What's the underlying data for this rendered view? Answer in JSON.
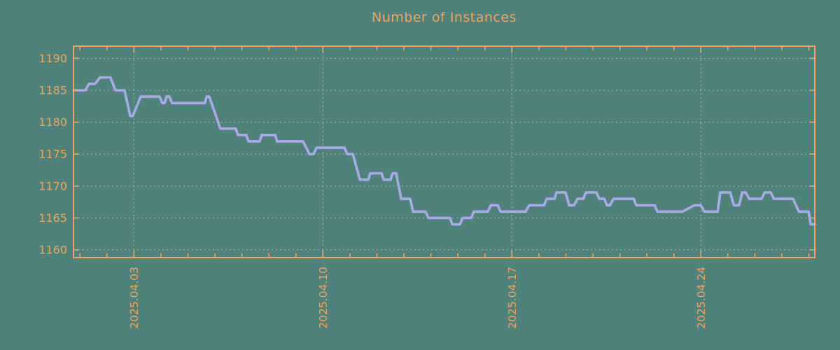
{
  "colors": {
    "background": "#4f827a",
    "axis_and_text": "#f0a35c",
    "series_line": "#a9a9e9",
    "gridline": "#b0b2b0"
  },
  "chart_data": {
    "type": "line",
    "title": "Number of Instances",
    "xlabel": "",
    "ylabel": "",
    "grid": true,
    "legend": false,
    "x_axis": {
      "unit": "date",
      "range_days": [
        0.76,
        28.22
      ],
      "day_zero": "2025.03.31",
      "major_ticks": [
        {
          "day": 3,
          "label": "2025.04.03"
        },
        {
          "day": 10,
          "label": "2025.04.10"
        },
        {
          "day": 17,
          "label": "2025.04.17"
        },
        {
          "day": 24,
          "label": "2025.04.24"
        }
      ],
      "minor_ticks": {
        "start_day": 1,
        "end_day": 28,
        "step": 1
      },
      "tick_label_rotation_deg": 90
    },
    "y_axis": {
      "ticks": [
        1160,
        1165,
        1170,
        1175,
        1180,
        1185,
        1190
      ],
      "range": [
        1158.8,
        1191.9
      ]
    },
    "series": [
      {
        "name": "instances",
        "points": [
          [
            0.76,
            1185
          ],
          [
            1.2,
            1185
          ],
          [
            1.33,
            1186
          ],
          [
            1.56,
            1186
          ],
          [
            1.74,
            1187
          ],
          [
            2.13,
            1187
          ],
          [
            2.31,
            1185
          ],
          [
            2.65,
            1185
          ],
          [
            2.86,
            1181
          ],
          [
            2.96,
            1181
          ],
          [
            3.25,
            1184
          ],
          [
            3.95,
            1184
          ],
          [
            4.05,
            1183
          ],
          [
            4.13,
            1183
          ],
          [
            4.21,
            1184
          ],
          [
            4.31,
            1184
          ],
          [
            4.41,
            1183
          ],
          [
            5.63,
            1183
          ],
          [
            5.69,
            1184
          ],
          [
            5.79,
            1184
          ],
          [
            6.2,
            1179
          ],
          [
            6.77,
            1179
          ],
          [
            6.85,
            1178
          ],
          [
            7.16,
            1178
          ],
          [
            7.24,
            1177
          ],
          [
            7.66,
            1177
          ],
          [
            7.73,
            1178
          ],
          [
            8.23,
            1178
          ],
          [
            8.3,
            1177
          ],
          [
            9.26,
            1177
          ],
          [
            9.5,
            1175
          ],
          [
            9.65,
            1175
          ],
          [
            9.76,
            1176
          ],
          [
            10.8,
            1176
          ],
          [
            10.9,
            1175
          ],
          [
            11.11,
            1175
          ],
          [
            11.37,
            1171
          ],
          [
            11.68,
            1171
          ],
          [
            11.75,
            1172
          ],
          [
            12.17,
            1172
          ],
          [
            12.25,
            1171
          ],
          [
            12.51,
            1171
          ],
          [
            12.58,
            1172
          ],
          [
            12.71,
            1172
          ],
          [
            12.9,
            1168
          ],
          [
            13.23,
            1168
          ],
          [
            13.34,
            1166
          ],
          [
            13.8,
            1166
          ],
          [
            13.91,
            1165
          ],
          [
            14.71,
            1165
          ],
          [
            14.79,
            1164
          ],
          [
            15.07,
            1164
          ],
          [
            15.18,
            1165
          ],
          [
            15.49,
            1165
          ],
          [
            15.59,
            1166
          ],
          [
            16.11,
            1166
          ],
          [
            16.22,
            1167
          ],
          [
            16.48,
            1167
          ],
          [
            16.58,
            1166
          ],
          [
            17.51,
            1166
          ],
          [
            17.64,
            1167
          ],
          [
            18.19,
            1167
          ],
          [
            18.29,
            1168
          ],
          [
            18.58,
            1168
          ],
          [
            18.65,
            1169
          ],
          [
            18.99,
            1169
          ],
          [
            19.12,
            1167
          ],
          [
            19.3,
            1167
          ],
          [
            19.43,
            1168
          ],
          [
            19.64,
            1168
          ],
          [
            19.74,
            1169
          ],
          [
            20.13,
            1169
          ],
          [
            20.24,
            1168
          ],
          [
            20.42,
            1168
          ],
          [
            20.52,
            1167
          ],
          [
            20.63,
            1167
          ],
          [
            20.76,
            1168
          ],
          [
            21.51,
            1168
          ],
          [
            21.61,
            1167
          ],
          [
            22.29,
            1167
          ],
          [
            22.39,
            1166
          ],
          [
            23.32,
            1166
          ],
          [
            23.76,
            1167
          ],
          [
            24.0,
            1167
          ],
          [
            24.13,
            1166
          ],
          [
            24.62,
            1166
          ],
          [
            24.72,
            1169
          ],
          [
            25.09,
            1169
          ],
          [
            25.22,
            1167
          ],
          [
            25.42,
            1167
          ],
          [
            25.53,
            1169
          ],
          [
            25.66,
            1169
          ],
          [
            25.79,
            1168
          ],
          [
            26.25,
            1168
          ],
          [
            26.36,
            1169
          ],
          [
            26.59,
            1169
          ],
          [
            26.7,
            1168
          ],
          [
            27.42,
            1168
          ],
          [
            27.63,
            1166
          ],
          [
            27.99,
            1166
          ],
          [
            28.07,
            1164
          ],
          [
            28.22,
            1164
          ]
        ]
      }
    ]
  }
}
